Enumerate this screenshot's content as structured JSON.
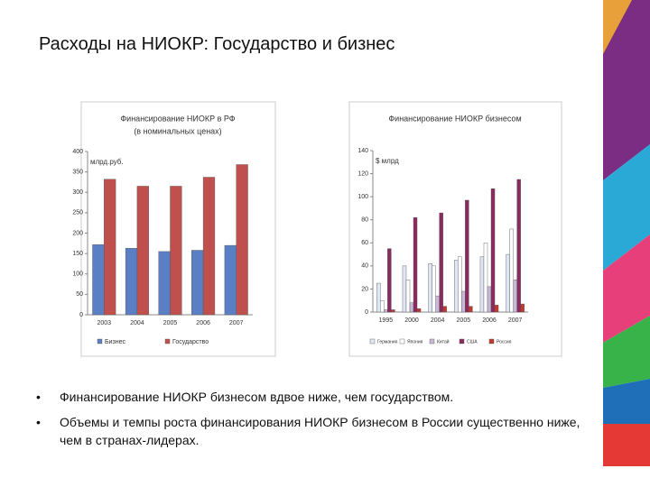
{
  "title": "Расходы на НИОКР: Государство и бизнес",
  "bullets": [
    "Финансирование НИОКР бизнесом вдвое ниже, чем государством.",
    "Объемы и темпы роста финансирования НИОКР бизнесом в России существенно ниже, чем в странах-лидерах."
  ],
  "chart_data": [
    {
      "type": "bar",
      "title": "Финансирование НИОКР в РФ",
      "subtitle": "(в номинальных ценах)",
      "y_label": "млрд.руб.",
      "categories": [
        "2003",
        "2004",
        "2005",
        "2006",
        "2007"
      ],
      "series": [
        {
          "name": "Бизнес",
          "color": "#5b7fc4",
          "values": [
            172,
            163,
            155,
            158,
            170
          ]
        },
        {
          "name": "Государство",
          "color": "#c0504d",
          "values": [
            332,
            315,
            315,
            337,
            368
          ]
        }
      ],
      "ylim": [
        0,
        400
      ],
      "yticks": [
        0,
        50,
        100,
        150,
        200,
        250,
        300,
        350,
        400
      ],
      "grid": false
    },
    {
      "type": "bar",
      "title": "Финансирование НИОКР бизнесом",
      "y_label": "$ млрд",
      "categories": [
        "1995",
        "2000",
        "2004",
        "2005",
        "2006",
        "2007"
      ],
      "series": [
        {
          "name": "Германия",
          "color": "#dfe6f5",
          "values": [
            25,
            40,
            42,
            45,
            48,
            50
          ]
        },
        {
          "name": "Япония",
          "color": "#ffffff",
          "values": [
            10,
            28,
            40,
            48,
            60,
            72
          ]
        },
        {
          "name": "Китай",
          "color": "#c9b8d8",
          "values": [
            2,
            8,
            14,
            18,
            22,
            28
          ]
        },
        {
          "name": "США",
          "color": "#8b2a5e",
          "values": [
            55,
            82,
            86,
            97,
            107,
            115
          ]
        },
        {
          "name": "Россия",
          "color": "#c0392b",
          "values": [
            2,
            3,
            5,
            5,
            6,
            7
          ]
        }
      ],
      "ylim": [
        0,
        140
      ],
      "yticks": [
        0,
        20,
        40,
        60,
        80,
        100,
        120,
        140
      ],
      "grid": false
    }
  ]
}
